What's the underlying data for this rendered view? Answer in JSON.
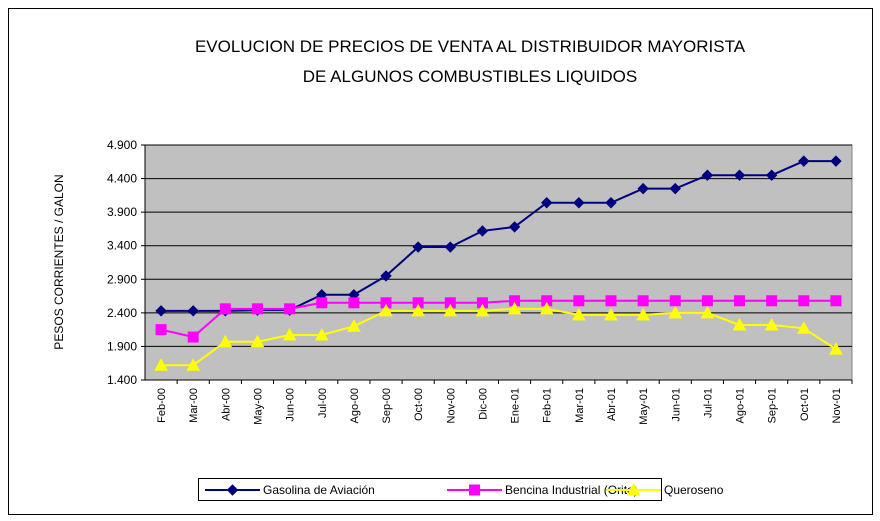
{
  "chart_data": {
    "type": "line",
    "title": [
      "EVOLUCION DE PRECIOS DE VENTA AL DISTRIBUIDOR MAYORISTA",
      "DE ALGUNOS COMBUSTIBLES LIQUIDOS"
    ],
    "y_label": "PESOS CORRIENTES / GALON",
    "categories": [
      "Feb-00",
      "Mar-00",
      "Abr-00",
      "May-00",
      "Jun-00",
      "Jul-00",
      "Ago-00",
      "Sep-00",
      "Oct-00",
      "Nov-00",
      "Dic-00",
      "Ene-01",
      "Feb-01",
      "Mar-01",
      "Abr-01",
      "May-01",
      "Jun-01",
      "Jul-01",
      "Ago-01",
      "Sep-01",
      "Oct-01",
      "Nov-01"
    ],
    "series": [
      {
        "name": "Gasolina de Aviación",
        "color": "#000080",
        "marker": "diamond",
        "values": [
          2430,
          2430,
          2430,
          2440,
          2440,
          2670,
          2670,
          2950,
          3380,
          3380,
          3620,
          3680,
          4040,
          4040,
          4040,
          4250,
          4250,
          4450,
          4450,
          4450,
          4660,
          4660
        ]
      },
      {
        "name": "Bencina Industrial (Orito)",
        "color": "#ff00ff",
        "marker": "square",
        "values": [
          2150,
          2040,
          2460,
          2460,
          2460,
          2550,
          2550,
          2550,
          2550,
          2550,
          2550,
          2580,
          2580,
          2580,
          2580,
          2580,
          2580,
          2580,
          2580,
          2580,
          2580,
          2580
        ]
      },
      {
        "name": "Queroseno",
        "color": "#ffff00",
        "marker": "triangle",
        "values": [
          1620,
          1620,
          1970,
          1970,
          2070,
          2070,
          2200,
          2430,
          2430,
          2430,
          2430,
          2460,
          2460,
          2370,
          2370,
          2370,
          2400,
          2400,
          2220,
          2220,
          2170,
          1860
        ]
      }
    ],
    "ylim": [
      1400,
      4900
    ],
    "yticks": [
      {
        "value": 1400,
        "label": "1.400"
      },
      {
        "value": 1900,
        "label": "1.900"
      },
      {
        "value": 2400,
        "label": "2.400"
      },
      {
        "value": 2900,
        "label": "2.900"
      },
      {
        "value": 3400,
        "label": "3.400"
      },
      {
        "value": 3900,
        "label": "3.900"
      },
      {
        "value": 4400,
        "label": "4.400"
      },
      {
        "value": 4900,
        "label": "4.900"
      }
    ],
    "grid": true,
    "legend": "bottom"
  }
}
